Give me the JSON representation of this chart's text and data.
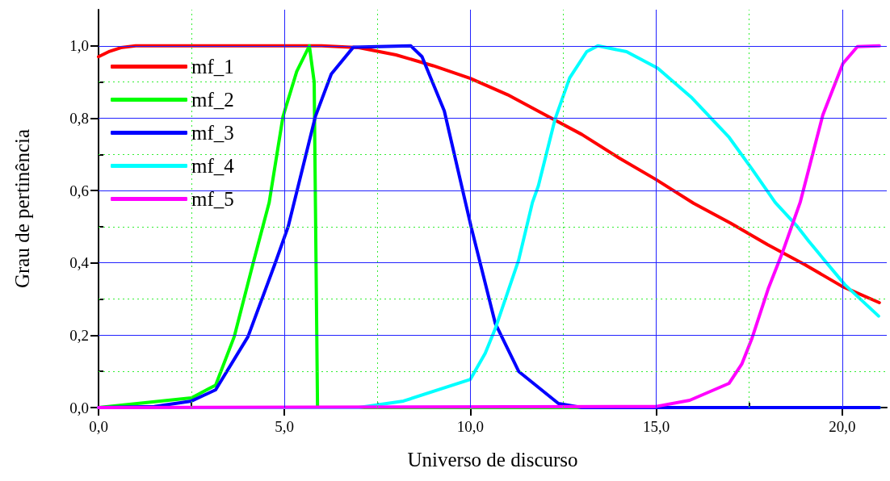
{
  "chart_data": {
    "type": "line",
    "xlabel": "Universo de discurso",
    "ylabel": "Grau de pertinência",
    "xlim": [
      0,
      21.2
    ],
    "ylim": [
      0,
      1.1
    ],
    "xticks": [
      {
        "value": 0,
        "label": "0,0"
      },
      {
        "value": 2.5,
        "label": null
      },
      {
        "value": 5,
        "label": "5,0"
      },
      {
        "value": 7.5,
        "label": null
      },
      {
        "value": 10,
        "label": "10,0"
      },
      {
        "value": 12.5,
        "label": null
      },
      {
        "value": 15,
        "label": "15,0"
      },
      {
        "value": 17.5,
        "label": null
      },
      {
        "value": 20,
        "label": "20,0"
      }
    ],
    "yticks": [
      {
        "value": 0,
        "label": "0,0"
      },
      {
        "value": 0.1,
        "label": null
      },
      {
        "value": 0.2,
        "label": "0,2"
      },
      {
        "value": 0.3,
        "label": null
      },
      {
        "value": 0.4,
        "label": "0,4"
      },
      {
        "value": 0.5,
        "label": null
      },
      {
        "value": 0.6,
        "label": "0,6"
      },
      {
        "value": 0.7,
        "label": null
      },
      {
        "value": 0.8,
        "label": "0,8"
      },
      {
        "value": 0.9,
        "label": null
      },
      {
        "value": 1.0,
        "label": "1,0"
      }
    ],
    "grid": true,
    "legend": "top left",
    "marker": "none",
    "line_style": "solid",
    "series": [
      {
        "name": "mf_1",
        "color": "#ff0000",
        "x": [
          0,
          0.3,
          0.6,
          1,
          6,
          7,
          8,
          9,
          10,
          11,
          12,
          13,
          14,
          15,
          16,
          17,
          18,
          19,
          20,
          21
        ],
        "values": [
          0.97,
          0.985,
          0.995,
          1,
          1,
          0.995,
          0.975,
          0.945,
          0.91,
          0.865,
          0.81,
          0.755,
          0.69,
          0.63,
          0.565,
          0.51,
          0.45,
          0.395,
          0.335,
          0.29
        ]
      },
      {
        "name": "mf_2",
        "color": "#00ff00",
        "x": [
          0,
          2.5,
          3.15,
          3.65,
          4.15,
          4.59,
          4.96,
          5.33,
          5.67,
          5.8,
          5.89,
          21
        ],
        "values": [
          0,
          0.027,
          0.062,
          0.196,
          0.396,
          0.567,
          0.804,
          0.929,
          1,
          0.9,
          0,
          0
        ]
      },
      {
        "name": "mf_3",
        "color": "#0000ff",
        "x": [
          0,
          1.5,
          2.5,
          3.15,
          4.02,
          4.74,
          5.1,
          5.83,
          6.26,
          6.85,
          8.4,
          8.7,
          9.3,
          10.02,
          10.67,
          11.3,
          12.37,
          13,
          21
        ],
        "values": [
          0,
          0.003,
          0.018,
          0.049,
          0.196,
          0.396,
          0.5,
          0.804,
          0.922,
          0.996,
          1,
          0.97,
          0.82,
          0.5,
          0.233,
          0.1,
          0.011,
          0,
          0
        ]
      },
      {
        "name": "mf_4",
        "color": "#00ffff",
        "x": [
          0,
          7,
          8.2,
          10,
          10.4,
          10.67,
          11.3,
          11.67,
          11.83,
          12.28,
          12.67,
          13.13,
          13.43,
          14.2,
          15.04,
          15.96,
          16.96,
          17.57,
          18.2,
          18.8,
          19.1,
          20.07,
          20.98
        ],
        "values": [
          0,
          0,
          0.018,
          0.078,
          0.15,
          0.218,
          0.408,
          0.567,
          0.613,
          0.798,
          0.911,
          0.984,
          1,
          0.984,
          0.938,
          0.856,
          0.747,
          0.66,
          0.567,
          0.5,
          0.46,
          0.34,
          0.253
        ]
      },
      {
        "name": "mf_5",
        "color": "#ff00ff",
        "x": [
          0,
          15,
          15.9,
          16.96,
          17.3,
          17.57,
          18.02,
          18.41,
          18.87,
          19.48,
          20.02,
          20.41,
          21
        ],
        "values": [
          0,
          0.003,
          0.02,
          0.067,
          0.12,
          0.19,
          0.331,
          0.433,
          0.567,
          0.809,
          0.951,
          0.998,
          1
        ]
      }
    ]
  }
}
